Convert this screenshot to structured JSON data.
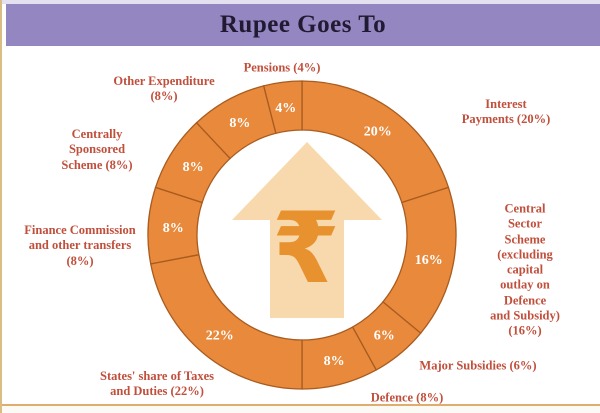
{
  "header": {
    "title": "Rupee Goes To",
    "bg_color": "#9486c1",
    "text_color": "#211a33"
  },
  "chart_data": {
    "type": "pie",
    "subtype": "donut",
    "title": "Rupee Goes To",
    "units": "%",
    "start_angle_deg": 0,
    "direction": "clockwise",
    "ring_color": "#e8893b",
    "divider_color": "#a85c20",
    "value_label_color": "#ffffff",
    "segments": [
      {
        "label": "Interest Payments",
        "value": 20
      },
      {
        "label": "Central Sector Scheme (excluding capital outlay on Defence and Subsidy)",
        "value": 16
      },
      {
        "label": "Major Subsidies",
        "value": 6
      },
      {
        "label": "Defence",
        "value": 8
      },
      {
        "label": "States' share of Taxes and Duties",
        "value": 22
      },
      {
        "label": "Finance Commission and other transfers",
        "value": 8
      },
      {
        "label": "Centrally Sponsored Scheme",
        "value": 8
      },
      {
        "label": "Other Expenditure",
        "value": 8
      },
      {
        "label": "Pensions",
        "value": 4
      }
    ]
  },
  "callouts": {
    "text_color": "#c04f3c",
    "pensions": "Pensions (4%)",
    "other_expenditure": "Other Expenditure\n(8%)",
    "centrally_sponsored": "Centrally\nSponsored\nScheme (8%)",
    "finance_commission": "Finance Commission\nand other transfers\n(8%)",
    "states_share": "States' share of Taxes\nand Duties (22%)",
    "defence": "Defence (8%)",
    "major_subsidies": "Major Subsidies (6%)",
    "central_sector": "Central Sector\nScheme\n(excluding capital\noutlay on Defence\nand Subsidy)\n(16%)",
    "interest_payments": "Interest Payments (20%)"
  },
  "center": {
    "symbol": "₹",
    "arrow_color": "#f7d9ad",
    "symbol_color": "#e8922f"
  }
}
